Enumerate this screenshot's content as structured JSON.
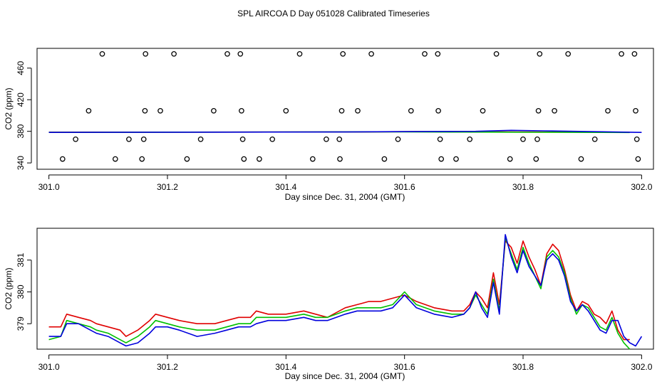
{
  "page_title": "SPL AIRCOA D  Day 051028  Calibrated Timeseries",
  "colors": {
    "red": "#e00000",
    "green": "#00c000",
    "blue": "#0000dd",
    "axis": "#000000"
  },
  "chart_data": [
    {
      "type": "scatter",
      "title": "",
      "xlabel": "Day since Dec. 31, 2004 (GMT)",
      "ylabel": "CO2 (ppm)",
      "xlim": [
        300.98,
        302.02
      ],
      "ylim": [
        332,
        485
      ],
      "xticks": [
        301.0,
        301.2,
        301.4,
        301.6,
        301.8,
        302.0
      ],
      "xtick_labels": [
        "301.0",
        "301.2",
        "301.4",
        "301.6",
        "301.8",
        "302.0"
      ],
      "yticks": [
        340,
        380,
        420,
        460
      ],
      "ytick_labels": [
        "340",
        "380",
        "420",
        "460"
      ],
      "points": [
        {
          "x": 301.023,
          "y": 345
        },
        {
          "x": 301.045,
          "y": 370
        },
        {
          "x": 301.067,
          "y": 406
        },
        {
          "x": 301.09,
          "y": 478
        },
        {
          "x": 301.112,
          "y": 345
        },
        {
          "x": 301.135,
          "y": 370
        },
        {
          "x": 301.157,
          "y": 345
        },
        {
          "x": 301.16,
          "y": 370
        },
        {
          "x": 301.162,
          "y": 406
        },
        {
          "x": 301.163,
          "y": 478
        },
        {
          "x": 301.188,
          "y": 406
        },
        {
          "x": 301.211,
          "y": 478
        },
        {
          "x": 301.233,
          "y": 345
        },
        {
          "x": 301.256,
          "y": 370
        },
        {
          "x": 301.278,
          "y": 406
        },
        {
          "x": 301.301,
          "y": 478
        },
        {
          "x": 301.323,
          "y": 478
        },
        {
          "x": 301.325,
          "y": 406
        },
        {
          "x": 301.327,
          "y": 370
        },
        {
          "x": 301.329,
          "y": 345
        },
        {
          "x": 301.355,
          "y": 345
        },
        {
          "x": 301.377,
          "y": 370
        },
        {
          "x": 301.4,
          "y": 406
        },
        {
          "x": 301.423,
          "y": 478
        },
        {
          "x": 301.445,
          "y": 345
        },
        {
          "x": 301.468,
          "y": 370
        },
        {
          "x": 301.49,
          "y": 370
        },
        {
          "x": 301.491,
          "y": 345
        },
        {
          "x": 301.494,
          "y": 406
        },
        {
          "x": 301.496,
          "y": 478
        },
        {
          "x": 301.521,
          "y": 406
        },
        {
          "x": 301.544,
          "y": 478
        },
        {
          "x": 301.566,
          "y": 345
        },
        {
          "x": 301.589,
          "y": 370
        },
        {
          "x": 301.611,
          "y": 406
        },
        {
          "x": 301.634,
          "y": 478
        },
        {
          "x": 301.656,
          "y": 478
        },
        {
          "x": 301.657,
          "y": 406
        },
        {
          "x": 301.66,
          "y": 370
        },
        {
          "x": 301.662,
          "y": 345
        },
        {
          "x": 301.687,
          "y": 345
        },
        {
          "x": 301.71,
          "y": 370
        },
        {
          "x": 301.732,
          "y": 406
        },
        {
          "x": 301.755,
          "y": 478
        },
        {
          "x": 301.778,
          "y": 345
        },
        {
          "x": 301.8,
          "y": 370
        },
        {
          "x": 301.822,
          "y": 345
        },
        {
          "x": 301.824,
          "y": 370
        },
        {
          "x": 301.826,
          "y": 406
        },
        {
          "x": 301.828,
          "y": 478
        },
        {
          "x": 301.853,
          "y": 406
        },
        {
          "x": 301.876,
          "y": 478
        },
        {
          "x": 301.898,
          "y": 345
        },
        {
          "x": 301.921,
          "y": 370
        },
        {
          "x": 301.943,
          "y": 406
        },
        {
          "x": 301.966,
          "y": 478
        },
        {
          "x": 301.988,
          "y": 478
        },
        {
          "x": 301.99,
          "y": 406
        },
        {
          "x": 301.992,
          "y": 370
        },
        {
          "x": 301.994,
          "y": 345
        }
      ],
      "series": [
        {
          "name": "red",
          "color": "#e00000",
          "x": [
            301.0,
            301.52,
            301.62,
            301.98
          ],
          "values": [
            378.9,
            379.2,
            379.6,
            378.8
          ]
        },
        {
          "name": "green",
          "color": "#00c000",
          "x": [
            301.0,
            301.6,
            301.7,
            301.98
          ],
          "values": [
            378.7,
            379.3,
            379.1,
            378.5
          ]
        },
        {
          "name": "blue",
          "color": "#0000dd",
          "x": [
            301.0,
            301.3,
            301.5,
            301.6,
            301.72,
            301.78,
            301.85,
            302.0
          ],
          "values": [
            378.6,
            379.0,
            379.2,
            379.6,
            380.0,
            381.2,
            380.4,
            378.6
          ]
        }
      ]
    },
    {
      "type": "line",
      "title": "",
      "xlabel": "Day since Dec. 31, 2004 (GMT)",
      "ylabel": "CO2 (ppm)",
      "xlim": [
        300.98,
        302.02
      ],
      "ylim": [
        378.2,
        382.0
      ],
      "xticks": [
        301.0,
        301.2,
        301.4,
        301.6,
        301.8,
        302.0
      ],
      "xtick_labels": [
        "301.0",
        "301.2",
        "301.4",
        "301.6",
        "301.8",
        "302.0"
      ],
      "yticks": [
        379,
        380,
        381
      ],
      "ytick_labels": [
        "379",
        "380",
        "381"
      ],
      "series": [
        {
          "name": "red",
          "color": "#e00000",
          "x": [
            301.0,
            301.02,
            301.03,
            301.05,
            301.07,
            301.08,
            301.1,
            301.12,
            301.13,
            301.15,
            301.17,
            301.18,
            301.2,
            301.22,
            301.25,
            301.28,
            301.3,
            301.32,
            301.34,
            301.35,
            301.37,
            301.4,
            301.43,
            301.45,
            301.47,
            301.5,
            301.52,
            301.54,
            301.56,
            301.58,
            301.6,
            301.62,
            301.65,
            301.68,
            301.7,
            301.71,
            301.72,
            301.73,
            301.74,
            301.75,
            301.76,
            301.77,
            301.78,
            301.79,
            301.8,
            301.81,
            301.82,
            301.83,
            301.84,
            301.85,
            301.86,
            301.87,
            301.88,
            301.89,
            301.9,
            301.91,
            301.92,
            301.93,
            301.94,
            301.95,
            301.96,
            301.97,
            301.98
          ],
          "values": [
            378.9,
            378.9,
            379.3,
            379.2,
            379.1,
            379.0,
            378.9,
            378.8,
            378.6,
            378.8,
            379.1,
            379.3,
            379.2,
            379.1,
            379.0,
            379.0,
            379.1,
            379.2,
            379.2,
            379.4,
            379.3,
            379.3,
            379.4,
            379.3,
            379.2,
            379.5,
            379.6,
            379.7,
            379.7,
            379.8,
            379.9,
            379.7,
            379.5,
            379.4,
            379.4,
            379.6,
            380.0,
            379.8,
            379.5,
            380.6,
            379.6,
            381.6,
            381.4,
            380.9,
            381.6,
            381.1,
            380.7,
            380.2,
            381.2,
            381.5,
            381.3,
            380.7,
            379.9,
            379.4,
            379.7,
            379.6,
            379.3,
            379.2,
            379.0,
            379.4,
            378.8,
            378.5,
            378.5
          ]
        },
        {
          "name": "green",
          "color": "#00c000",
          "x": [
            301.0,
            301.02,
            301.03,
            301.05,
            301.07,
            301.08,
            301.1,
            301.12,
            301.13,
            301.15,
            301.17,
            301.18,
            301.2,
            301.22,
            301.25,
            301.28,
            301.3,
            301.32,
            301.34,
            301.35,
            301.37,
            301.4,
            301.43,
            301.45,
            301.47,
            301.5,
            301.52,
            301.54,
            301.56,
            301.58,
            301.6,
            301.62,
            301.65,
            301.68,
            301.7,
            301.71,
            301.72,
            301.73,
            301.74,
            301.75,
            301.76,
            301.77,
            301.78,
            301.79,
            301.8,
            301.81,
            301.82,
            301.83,
            301.84,
            301.85,
            301.86,
            301.87,
            301.88,
            301.89,
            301.9,
            301.91,
            301.92,
            301.93,
            301.94,
            301.95,
            301.96,
            301.97,
            301.98
          ],
          "values": [
            378.5,
            378.6,
            379.1,
            379.0,
            378.9,
            378.8,
            378.7,
            378.5,
            378.4,
            378.6,
            378.9,
            379.1,
            379.0,
            378.9,
            378.8,
            378.8,
            378.9,
            379.0,
            379.0,
            379.2,
            379.2,
            379.2,
            379.3,
            379.2,
            379.2,
            379.4,
            379.5,
            379.5,
            379.5,
            379.6,
            380.0,
            379.6,
            379.4,
            379.3,
            379.3,
            379.5,
            379.9,
            379.6,
            379.3,
            380.4,
            379.4,
            381.7,
            381.2,
            380.7,
            381.4,
            380.9,
            380.5,
            380.1,
            381.1,
            381.3,
            381.1,
            380.6,
            379.8,
            379.3,
            379.6,
            379.5,
            379.2,
            378.9,
            378.8,
            379.2,
            378.7,
            378.4,
            378.2
          ]
        },
        {
          "name": "blue",
          "color": "#0000dd",
          "x": [
            301.0,
            301.02,
            301.03,
            301.05,
            301.07,
            301.08,
            301.1,
            301.12,
            301.13,
            301.15,
            301.17,
            301.18,
            301.2,
            301.22,
            301.25,
            301.28,
            301.3,
            301.32,
            301.34,
            301.35,
            301.37,
            301.4,
            301.43,
            301.45,
            301.47,
            301.5,
            301.52,
            301.54,
            301.56,
            301.58,
            301.6,
            301.62,
            301.65,
            301.68,
            301.7,
            301.71,
            301.72,
            301.73,
            301.74,
            301.75,
            301.76,
            301.77,
            301.78,
            301.79,
            301.8,
            301.81,
            301.82,
            301.83,
            301.84,
            301.85,
            301.86,
            301.87,
            301.88,
            301.89,
            301.9,
            301.91,
            301.92,
            301.93,
            301.94,
            301.95,
            301.96,
            301.97,
            301.98,
            301.99,
            302.0
          ],
          "values": [
            378.6,
            378.6,
            379.0,
            379.0,
            378.8,
            378.7,
            378.6,
            378.4,
            378.3,
            378.4,
            378.7,
            378.9,
            378.9,
            378.8,
            378.6,
            378.7,
            378.8,
            378.9,
            378.9,
            379.0,
            379.1,
            379.1,
            379.2,
            379.1,
            379.1,
            379.3,
            379.4,
            379.4,
            379.4,
            379.5,
            379.9,
            379.5,
            379.3,
            379.2,
            379.3,
            379.5,
            380.0,
            379.5,
            379.2,
            380.3,
            379.3,
            381.8,
            381.1,
            380.6,
            381.3,
            380.8,
            380.5,
            380.2,
            381.0,
            381.2,
            381.0,
            380.5,
            379.7,
            379.4,
            379.6,
            379.4,
            379.1,
            378.8,
            378.7,
            379.1,
            379.1,
            378.6,
            378.4,
            378.3,
            378.6
          ]
        }
      ]
    }
  ]
}
